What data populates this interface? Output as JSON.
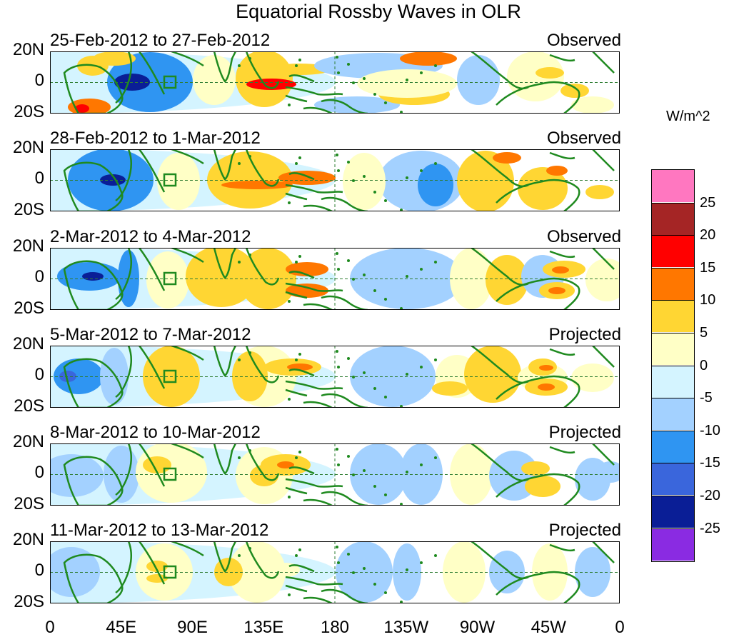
{
  "title": "Equatorial Rossby Waves in OLR",
  "panels": [
    {
      "date_range": "25-Feb-2012 to 27-Feb-2012",
      "status": "Observed"
    },
    {
      "date_range": "28-Feb-2012 to 1-Mar-2012",
      "status": "Observed"
    },
    {
      "date_range": "2-Mar-2012 to 4-Mar-2012",
      "status": "Observed"
    },
    {
      "date_range": "5-Mar-2012 to 7-Mar-2012",
      "status": "Projected"
    },
    {
      "date_range": "8-Mar-2012 to 10-Mar-2012",
      "status": "Projected"
    },
    {
      "date_range": "11-Mar-2012 to 13-Mar-2012",
      "status": "Projected"
    }
  ],
  "lat_labels": [
    "20N",
    "0",
    "20S"
  ],
  "lon_labels": [
    "0",
    "45E",
    "90E",
    "135E",
    "180",
    "135W",
    "90W",
    "45W",
    "0"
  ],
  "legend": {
    "units": "W/m^2",
    "colors": [
      "#ff77c0",
      "#a52525",
      "#ff0000",
      "#ff7700",
      "#ffd633",
      "#ffffc6",
      "#d4f4ff",
      "#a3d1ff",
      "#2f95f2",
      "#3a66dc",
      "#0a1e96",
      "#8a2be2"
    ],
    "labels": [
      "25",
      "20",
      "15",
      "10",
      "5",
      "0",
      "-5",
      "-10",
      "-15",
      "-20",
      "-25"
    ]
  }
}
